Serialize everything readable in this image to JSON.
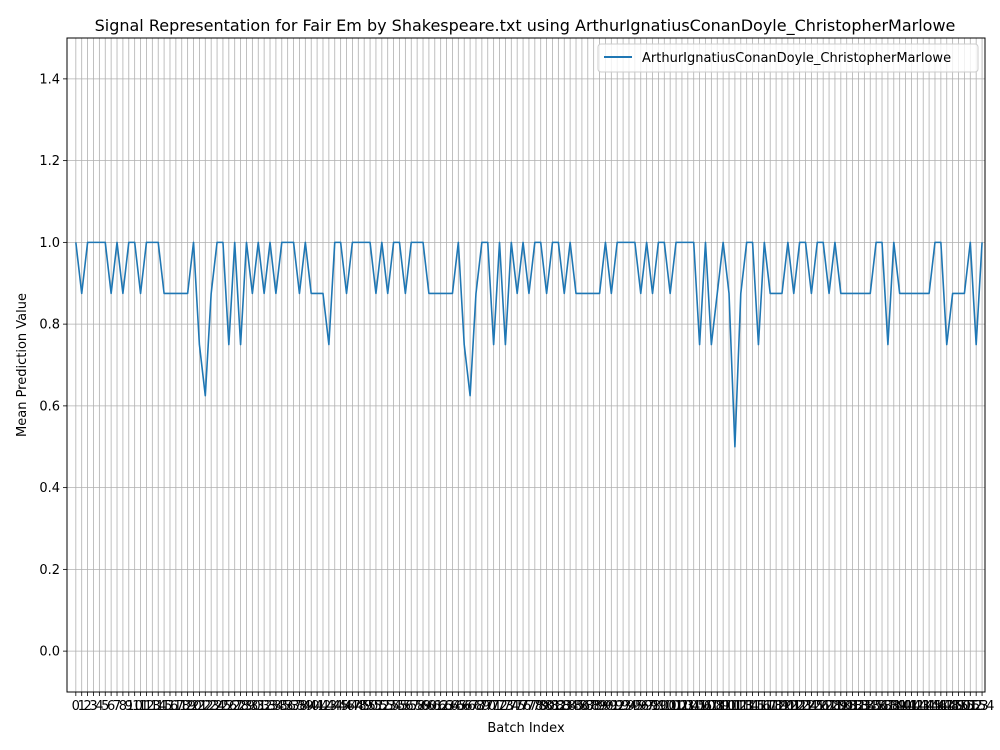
{
  "chart_data": {
    "type": "line",
    "title": "Signal Representation for Fair Em by Shakespeare.txt using ArthurIgnatiusConanDoyle_ChristopherMarlowe",
    "xlabel": "Batch Index",
    "ylabel": "Mean Prediction Value",
    "ylim": [
      -0.1,
      1.5
    ],
    "xlim": [
      -1.5,
      154.5
    ],
    "yticks": [
      0.0,
      0.2,
      0.4,
      0.6,
      0.8,
      1.0,
      1.2,
      1.4
    ],
    "grid": true,
    "legend_position": "top-right",
    "colors": {
      "series": "#1f77b4",
      "grid": "#b0b0b0"
    },
    "series": [
      {
        "name": "ArthurIgnatiusConanDoyle_ChristopherMarlowe",
        "values": [
          1.0,
          0.875,
          1.0,
          1.0,
          1.0,
          1.0,
          0.875,
          1.0,
          0.875,
          1.0,
          1.0,
          0.875,
          1.0,
          1.0,
          1.0,
          0.875,
          0.875,
          0.875,
          0.875,
          0.875,
          1.0,
          0.75,
          0.625,
          0.875,
          1.0,
          1.0,
          0.75,
          1.0,
          0.75,
          1.0,
          0.875,
          1.0,
          0.875,
          1.0,
          0.875,
          1.0,
          1.0,
          1.0,
          0.875,
          1.0,
          0.875,
          0.875,
          0.875,
          0.75,
          1.0,
          1.0,
          0.875,
          1.0,
          1.0,
          1.0,
          1.0,
          0.875,
          1.0,
          0.875,
          1.0,
          1.0,
          0.875,
          1.0,
          1.0,
          1.0,
          0.875,
          0.875,
          0.875,
          0.875,
          0.875,
          1.0,
          0.75,
          0.625,
          0.875,
          1.0,
          1.0,
          0.75,
          1.0,
          0.75,
          1.0,
          0.875,
          1.0,
          0.875,
          1.0,
          1.0,
          0.875,
          1.0,
          1.0,
          0.875,
          1.0,
          0.875,
          0.875,
          0.875,
          0.875,
          0.875,
          1.0,
          0.875,
          1.0,
          1.0,
          1.0,
          1.0,
          0.875,
          1.0,
          0.875,
          1.0,
          1.0,
          0.875,
          1.0,
          1.0,
          1.0,
          1.0,
          0.75,
          1.0,
          0.75,
          0.875,
          1.0,
          0.875,
          0.5,
          0.875,
          1.0,
          1.0,
          0.75,
          1.0,
          0.875,
          0.875,
          0.875,
          1.0,
          0.875,
          1.0,
          1.0,
          0.875,
          1.0,
          1.0,
          0.875,
          1.0,
          0.875,
          0.875,
          0.875,
          0.875,
          0.875,
          0.875,
          1.0,
          1.0,
          0.75,
          1.0,
          0.875,
          0.875,
          0.875,
          0.875,
          0.875,
          0.875,
          1.0,
          1.0,
          0.75,
          0.875,
          0.875,
          0.875,
          1.0,
          0.75,
          1.0
        ]
      }
    ]
  }
}
